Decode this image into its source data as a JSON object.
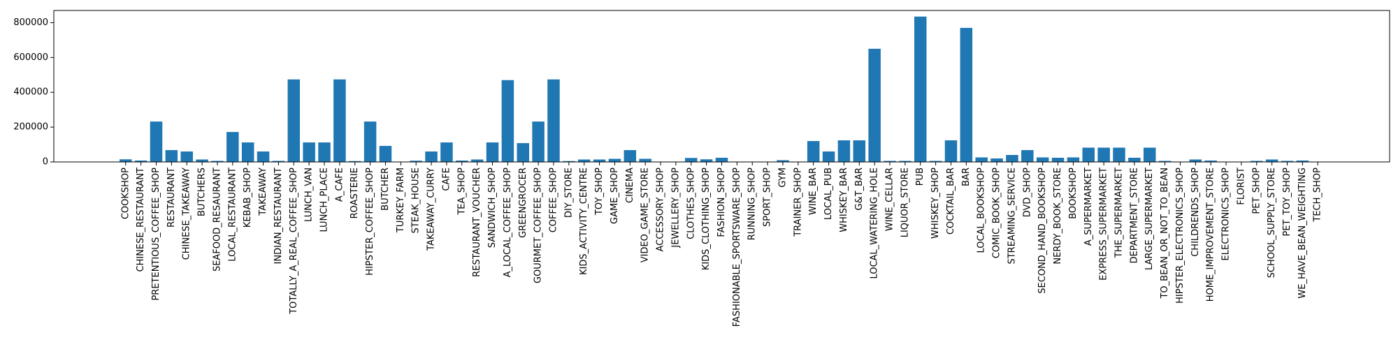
{
  "chart_data": {
    "type": "bar",
    "title": "",
    "xlabel": "",
    "ylabel": "",
    "ylim": [
      0,
      870000
    ],
    "yticks": [
      0,
      200000,
      400000,
      600000,
      800000
    ],
    "grid": false,
    "bar_color": "#1f77b4",
    "categories": [
      "COOKSHOP",
      "CHINESE_RESTAURANT",
      "PRETENTIOUS_COFFEE_SHOP",
      "RESTAURANT",
      "CHINESE_TAKEAWAY",
      "BUTCHERS",
      "SEAFOOD_RESAURANT",
      "LOCAL_RESTAURANT",
      "KEBAB_SHOP",
      "TAKEAWAY",
      "INDIAN_RESTAURANT",
      "TOTALLY_A_REAL_COFFEE_SHOP",
      "LUNCH_VAN",
      "LUNCH_PLACE",
      "A_CAFE",
      "ROASTERIE",
      "HIPSTER_COFFEE_SHOP",
      "BUTCHER",
      "TURKEY_FARM",
      "STEAK_HOUSE",
      "TAKEAWAY_CURRY",
      "CAFE",
      "TEA_SHOP",
      "RESTAURANT_VOUCHER",
      "SANDWICH_SHOP",
      "A_LOCAL_COFFEE_SHOP",
      "GREENGROCER",
      "GOURMET_COFFEE_SHOP",
      "COFFEE_SHOP",
      "DIY_STORE",
      "KIDS_ACTIVITY_CENTRE",
      "TOY_SHOP",
      "GAME_SHOP",
      "CINEMA",
      "VIDEO_GAME_STORE",
      "ACCESSORY_SHOP",
      "JEWELLERY_SHOP",
      "CLOTHES_SHOP",
      "KIDS_CLOTHING_SHOP",
      "FASHION_SHOP",
      "FASHIONABLE_SPORTSWARE_SHOP",
      "RUNNING_SHOP",
      "SPORT_SHOP",
      "GYM",
      "TRAINER_SHOP",
      "WINE_BAR",
      "LOCAL_PUB",
      "WHISKEY_BAR",
      "G&T_BAR",
      "LOCAL_WATERING_HOLE",
      "WINE_CELLAR",
      "LIQUOR_STORE",
      "PUB",
      "WHISKEY_SHOP",
      "COCKTAIL_BAR",
      "BAR",
      "LOCAL_BOOKSHOP",
      "COMIC_BOOK_SHOP",
      "STREAMING_SERVICE",
      "DVD_SHOP",
      "SECOND_HAND_BOOKSHOP",
      "NERDY_BOOK_STORE",
      "BOOKSHOP",
      "A_SUPERMARKET",
      "EXPRESS_SUPERMARKET",
      "THE_SUPERMARKET",
      "DEPARTMENT_STORE",
      "LARGE_SUPERMARKET",
      "TO_BEAN_OR_NOT_TO_BEAN",
      "HIPSTER_ELECTRONICS_SHOP",
      "CHILDRENDS_SHOP",
      "HOME_IMPROVEMENT_STORE",
      "ELECTRONICS_SHOP",
      "FLORIST",
      "PET_SHOP",
      "SCHOOL_SUPPLY_STORE",
      "PET_TOY_SHOP",
      "WE_HAVE_BEAN_WEIGHTING",
      "TECH_SHOP"
    ],
    "values": [
      15000,
      8000,
      232000,
      68000,
      60000,
      14000,
      6000,
      172000,
      112000,
      60000,
      6000,
      474000,
      112000,
      112000,
      474000,
      5000,
      232000,
      92000,
      2000,
      7000,
      60000,
      112000,
      8000,
      14000,
      112000,
      470000,
      108000,
      232000,
      474000,
      5000,
      14000,
      14000,
      18000,
      68000,
      18000,
      2000,
      2000,
      23000,
      15000,
      24000,
      2000,
      2000,
      2000,
      10000,
      2000,
      120000,
      60000,
      124000,
      124000,
      650000,
      6000,
      6000,
      835000,
      6000,
      124000,
      770000,
      26000,
      20000,
      40000,
      68000,
      26000,
      24000,
      26000,
      82000,
      82000,
      82000,
      24000,
      82000,
      6000,
      2000,
      14000,
      8000,
      2000,
      2000,
      6000,
      14000,
      6000,
      8000,
      2000
    ]
  }
}
